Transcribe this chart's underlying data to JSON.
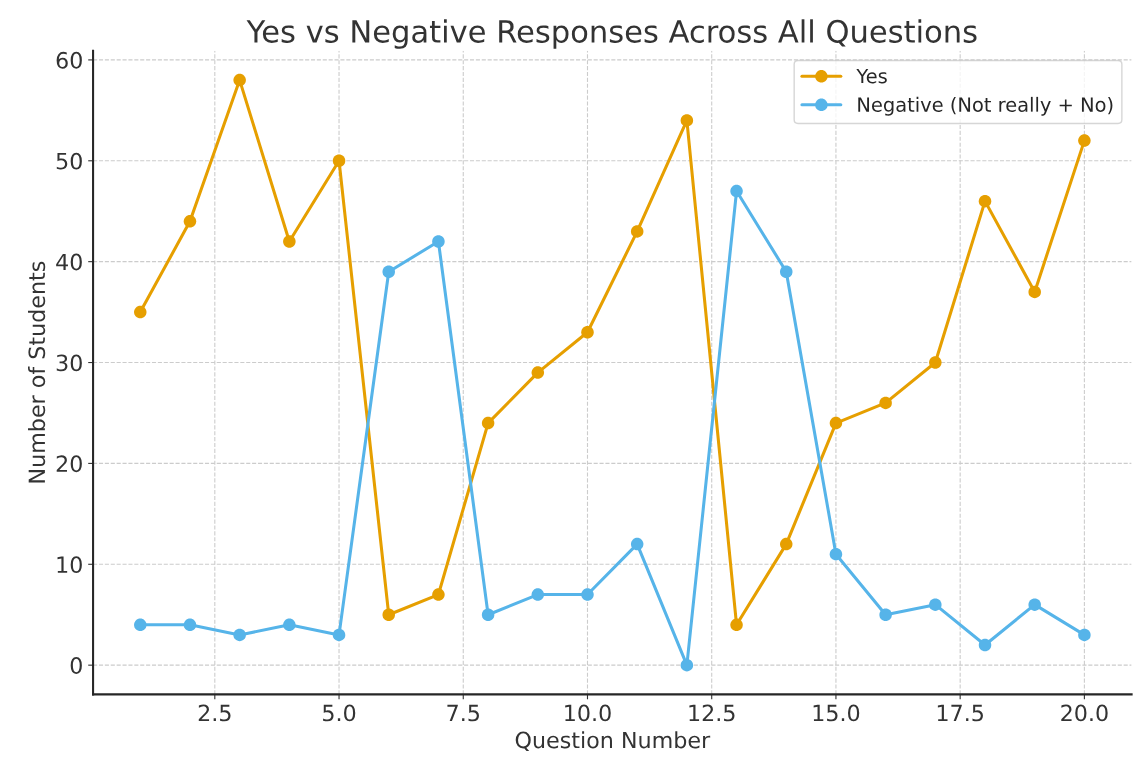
{
  "chart_data": {
    "type": "line",
    "title": "Yes vs Negative Responses Across All Questions",
    "xlabel": "Question Number",
    "ylabel": "Number of Students",
    "x": [
      1,
      2,
      3,
      4,
      5,
      6,
      7,
      8,
      9,
      10,
      11,
      12,
      13,
      14,
      15,
      16,
      17,
      18,
      19,
      20
    ],
    "series": [
      {
        "name": "Yes",
        "color": "#e69f00",
        "values": [
          35,
          44,
          58,
          42,
          50,
          5,
          7,
          24,
          29,
          33,
          43,
          54,
          4,
          12,
          24,
          26,
          30,
          46,
          37,
          52
        ]
      },
      {
        "name": "Negative (Not really + No)",
        "color": "#56b4e9",
        "values": [
          4,
          4,
          3,
          4,
          3,
          39,
          42,
          5,
          7,
          7,
          12,
          0,
          47,
          39,
          11,
          5,
          6,
          2,
          6,
          3
        ]
      }
    ],
    "xlim": [
      0.05,
      20.95
    ],
    "ylim": [
      -2.9,
      60.9
    ],
    "xticks": [
      {
        "value": 2.5,
        "label": "2.5"
      },
      {
        "value": 5,
        "label": "5.0"
      },
      {
        "value": 7.5,
        "label": "7.5"
      },
      {
        "value": 10,
        "label": "10.0"
      },
      {
        "value": 12.5,
        "label": "12.5"
      },
      {
        "value": 15,
        "label": "15.0"
      },
      {
        "value": 17.5,
        "label": "17.5"
      },
      {
        "value": 20,
        "label": "20.0"
      }
    ],
    "yticks": [
      0,
      10,
      20,
      30,
      40,
      50,
      60
    ],
    "grid": true,
    "legend": "top right",
    "marker": "circle",
    "line_style": "solid"
  }
}
